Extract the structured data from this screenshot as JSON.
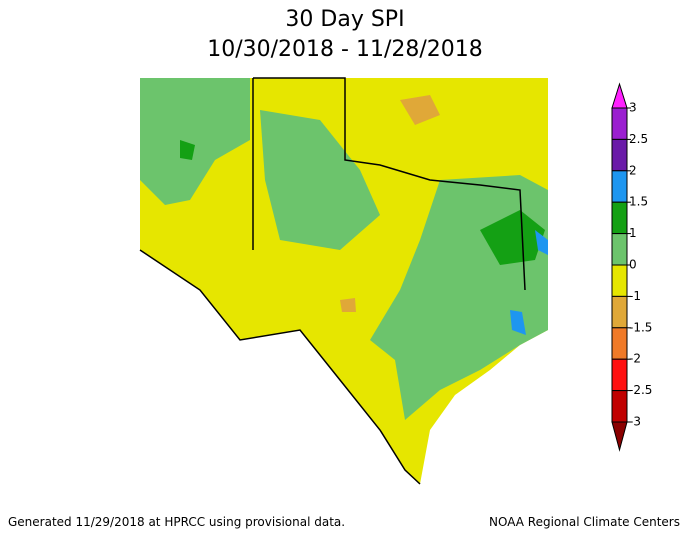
{
  "header": {
    "title": "30 Day SPI",
    "subtitle": "10/30/2018 - 11/28/2018"
  },
  "legend": {
    "ticks": [
      3,
      2.5,
      2,
      1.5,
      1,
      0,
      -1,
      -1.5,
      -2,
      -2.5,
      -3
    ],
    "colors": [
      "#9b1fd0",
      "#6a1ba8",
      "#1e96f0",
      "#14a014",
      "#6cc46c",
      "#e6e600",
      "#e0a838",
      "#f07a28",
      "#ff1010",
      "#c00000"
    ],
    "over_color": "#ff20ff",
    "under_color": "#8a0000"
  },
  "footer": {
    "left": "Generated 11/29/2018 at HPRCC using provisional data.",
    "right": "NOAA Regional Climate Centers"
  }
}
